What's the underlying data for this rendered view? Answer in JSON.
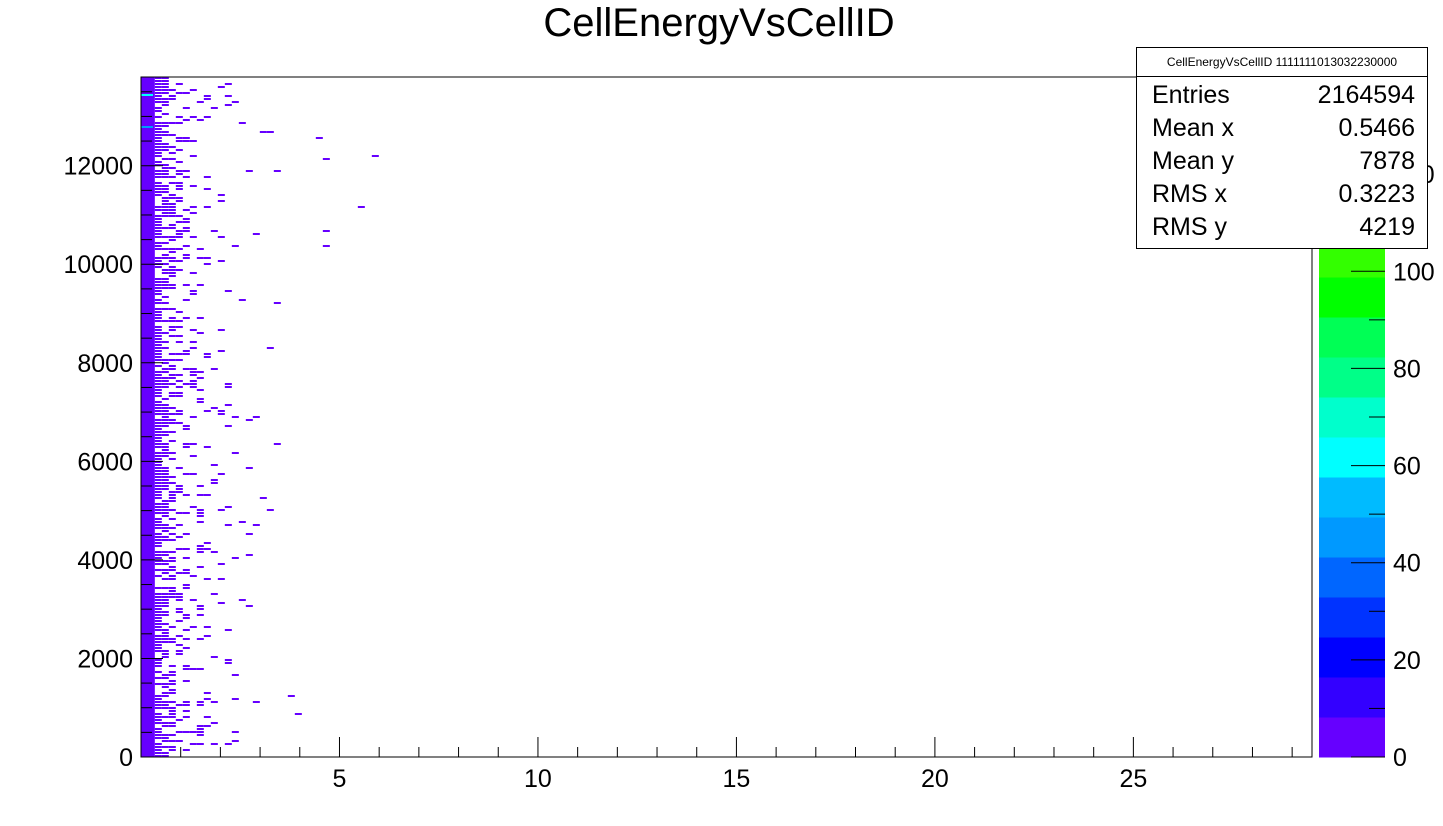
{
  "chart_data": {
    "type": "heatmap",
    "title": "CellEnergyVsCellID",
    "xlabel": "",
    "ylabel": "",
    "xlim": [
      0,
      29.5
    ],
    "ylim": [
      0,
      13800
    ],
    "x_ticks": [
      5,
      10,
      15,
      20,
      25
    ],
    "y_ticks": [
      0,
      2000,
      4000,
      6000,
      8000,
      10000,
      12000
    ],
    "z_ticks": [
      0,
      20,
      40,
      60,
      80,
      100,
      120
    ],
    "z_range": [
      0,
      140
    ],
    "palette": [
      "#6600ff",
      "#3300ff",
      "#0000ff",
      "#0033ff",
      "#0066ff",
      "#0099ff",
      "#00bbff",
      "#00ffff",
      "#00ffcc",
      "#00ff88",
      "#00ff55",
      "#00ff00",
      "#33ff00",
      "#66ff00",
      "#99ff00",
      "#ccff00",
      "#ffff00"
    ],
    "description_points": {
      "dense_region_x_max": 0.55,
      "sparse_region_x_max": 7.0
    },
    "stats_box": {
      "title": "CellEnergyVsCellID 1111111013032230000",
      "rows": [
        {
          "label": "Entries",
          "value": "2164594"
        },
        {
          "label": "Mean x",
          "value": "0.5466"
        },
        {
          "label": "Mean y",
          "value": "7878"
        },
        {
          "label": "RMS x",
          "value": "0.3223"
        },
        {
          "label": "RMS y",
          "value": "4219"
        }
      ]
    }
  }
}
